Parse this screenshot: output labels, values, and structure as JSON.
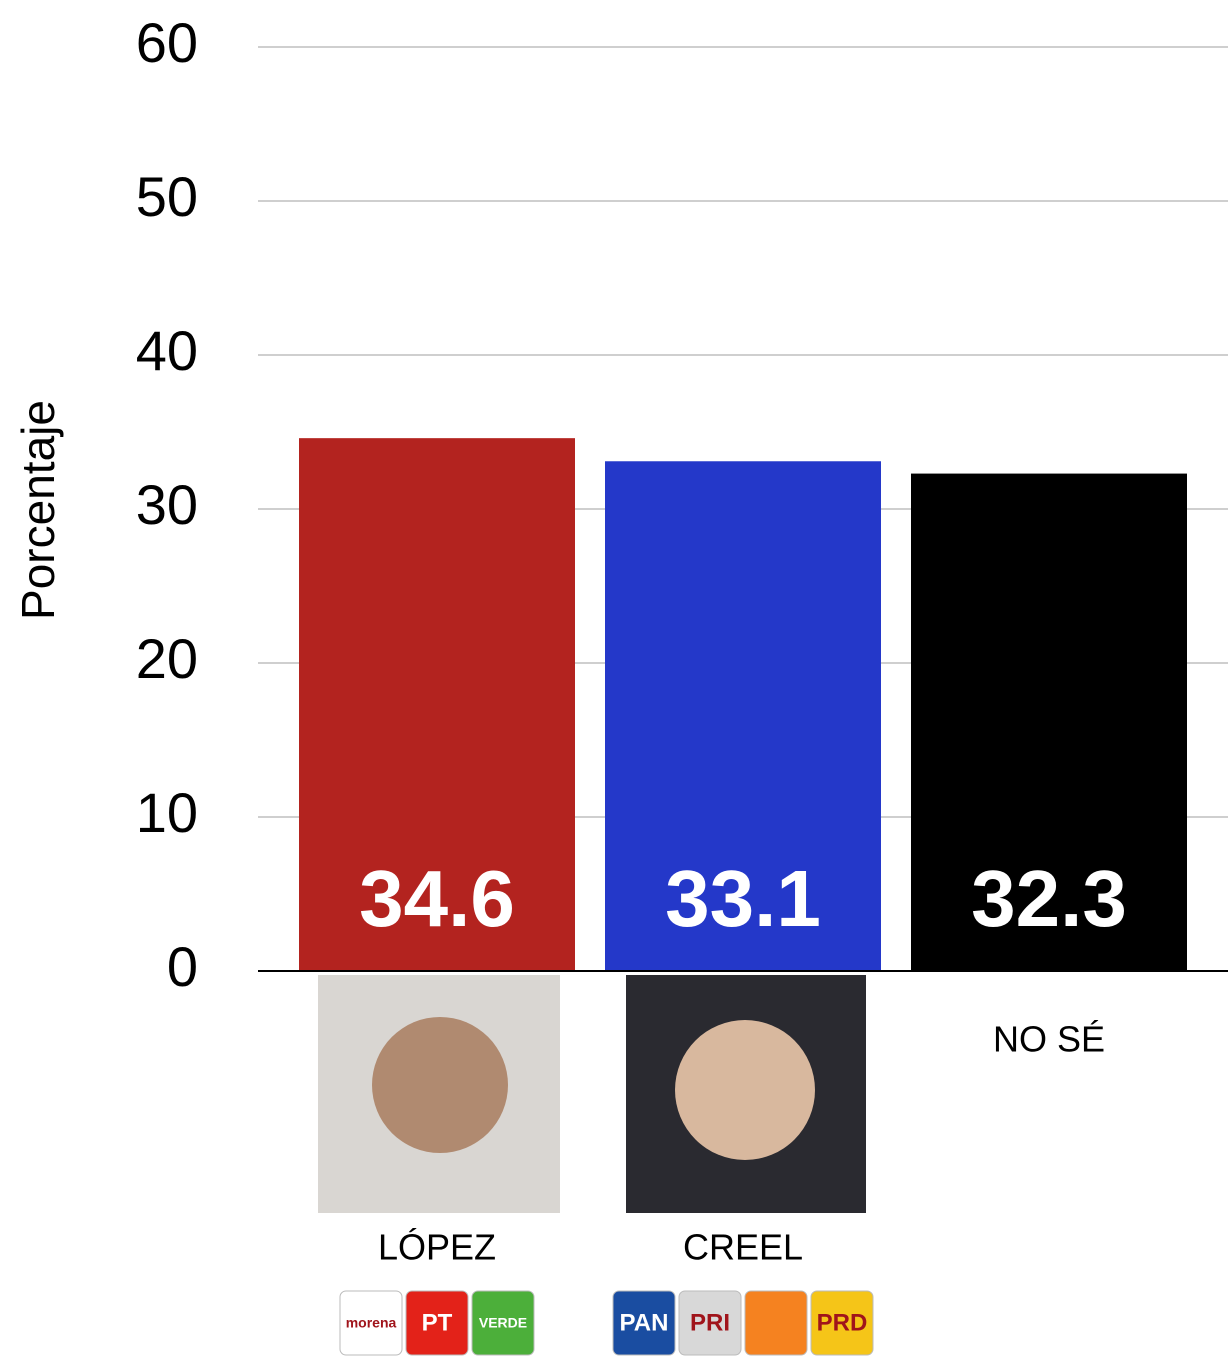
{
  "chart_data": {
    "type": "bar",
    "y_label": "Porcentaje",
    "categories": [
      "LÓPEZ",
      "CREEL",
      "NO SÉ"
    ],
    "values": [
      34.6,
      33.1,
      32.3
    ],
    "colors": [
      "#b3231f",
      "#2438c9",
      "#000000"
    ],
    "ylim": [
      0,
      60
    ],
    "yticks": [
      0,
      10,
      20,
      30,
      40,
      50,
      60
    ],
    "grid": true,
    "logos": [
      [
        {
          "label": "morena",
          "color": "#ffffff"
        },
        {
          "label": "PT",
          "color": "#e32219"
        },
        {
          "label": "VERDE",
          "color": "#4caf3a"
        }
      ],
      [
        {
          "label": "PAN",
          "color": "#1a4da1"
        },
        {
          "label": "PRI",
          "color": "#d8d8d8"
        },
        {
          "color": "#f58220"
        },
        {
          "label": "PRD",
          "color": "#f5c518"
        }
      ]
    ]
  }
}
